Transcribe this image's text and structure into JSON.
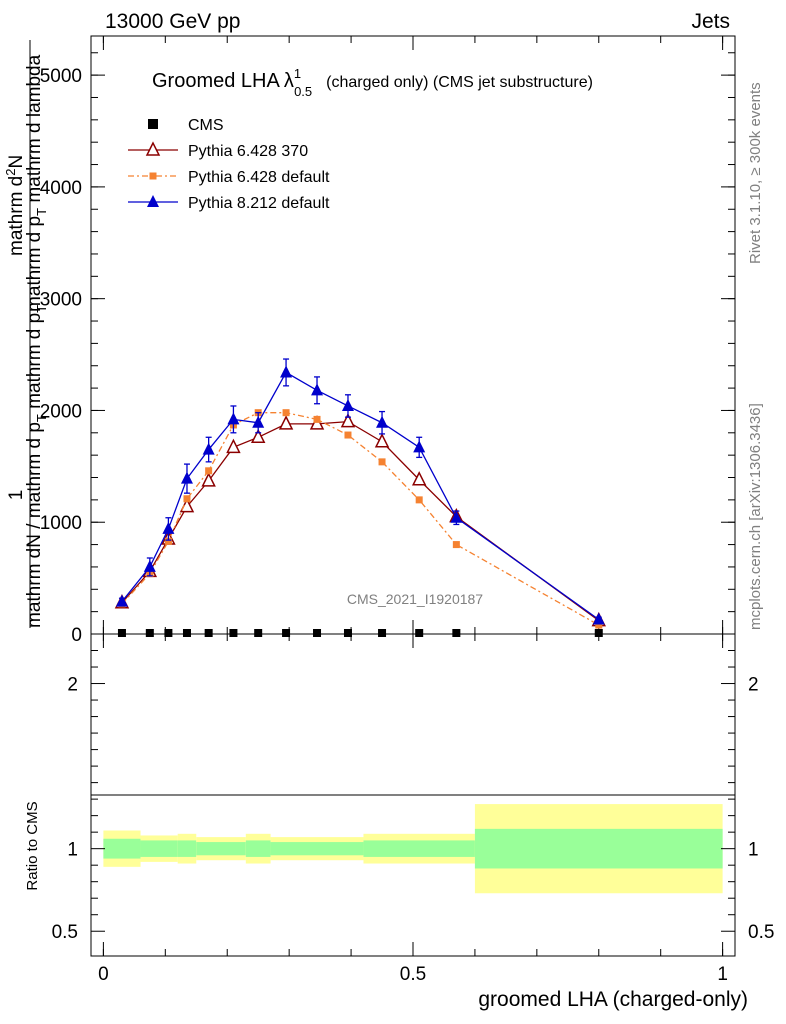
{
  "header": {
    "left": "13000 GeV pp",
    "right": "Jets"
  },
  "side": {
    "rivet": "Rivet 3.1.10, ≥ 300k events",
    "mcplots": "mcplots.cern.ch [arXiv:1306.3436]"
  },
  "watermark": "CMS_2021_I1920187",
  "chart_data": {
    "type": "line",
    "title": "Groomed LHA",
    "title_symbol": "λ",
    "title_sup": "1",
    "title_sub": "0.5",
    "title_suffix": "(charged only) (CMS jet substructure)",
    "xlabel": "groomed LHA (charged-only)",
    "ylabel": "1 / mathrm dN / mathrm d p_T mathrm d p_T mathrm d lambda / mathrm d^2N",
    "ylabel_parts": {
      "numerator": "1",
      "num_line1": "mathrm d",
      "num_sup": "2",
      "num_tail": "N",
      "num_line2": "mathrm d p",
      "num_sub": "T",
      "num_line3": " mathrm d lambda",
      "den_line1": "mathrm dN / mathrm d p",
      "den_sub": "T",
      "den_line2": "mathrm d p",
      "den_sub2": "T"
    },
    "xlim": [
      -0.02,
      1.02
    ],
    "ylim": [
      0,
      5350
    ],
    "x_ticks": [
      {
        "value": 0,
        "label": "0"
      },
      {
        "value": 0.5,
        "label": "0.5"
      },
      {
        "value": 1,
        "label": "1"
      }
    ],
    "y_ticks": [
      {
        "value": 0,
        "label": "0"
      },
      {
        "value": 1000,
        "label": "1000"
      },
      {
        "value": 2000,
        "label": "2000"
      },
      {
        "value": 3000,
        "label": "3000"
      },
      {
        "value": 4000,
        "label": "4000"
      },
      {
        "value": 5000,
        "label": "5000"
      }
    ],
    "series": [
      {
        "name": "CMS",
        "color": "#000000",
        "marker": "square",
        "line": "none",
        "x": [
          0.03,
          0.075,
          0.105,
          0.135,
          0.17,
          0.21,
          0.25,
          0.295,
          0.345,
          0.395,
          0.45,
          0.51,
          0.57,
          0.8
        ],
        "y": [
          0,
          0,
          0,
          0,
          0,
          0,
          0,
          0,
          0,
          0,
          0,
          0,
          0,
          0
        ]
      },
      {
        "name": "Pythia 6.428 370",
        "color": "#8b0000",
        "marker": "open-triangle",
        "line": "solid",
        "x": [
          0.03,
          0.075,
          0.105,
          0.135,
          0.17,
          0.21,
          0.25,
          0.295,
          0.345,
          0.395,
          0.45,
          0.51,
          0.57,
          0.8
        ],
        "y": [
          280,
          560,
          850,
          1140,
          1370,
          1670,
          1760,
          1880,
          1880,
          1900,
          1720,
          1380,
          1050,
          120
        ]
      },
      {
        "name": "Pythia 6.428 default",
        "color": "#f58231",
        "marker": "square",
        "line": "dashdot",
        "x": [
          0.03,
          0.075,
          0.105,
          0.135,
          0.17,
          0.21,
          0.25,
          0.295,
          0.345,
          0.395,
          0.45,
          0.51,
          0.57,
          0.8
        ],
        "y": [
          270,
          540,
          830,
          1210,
          1460,
          1870,
          1980,
          1980,
          1920,
          1780,
          1540,
          1200,
          800,
          80
        ]
      },
      {
        "name": "Pythia 8.212 default",
        "color": "#0000cc",
        "marker": "filled-triangle",
        "line": "solid",
        "x": [
          0.03,
          0.075,
          0.105,
          0.135,
          0.17,
          0.21,
          0.25,
          0.295,
          0.345,
          0.395,
          0.45,
          0.51,
          0.57,
          0.8
        ],
        "y": [
          290,
          600,
          940,
          1390,
          1650,
          1920,
          1890,
          2340,
          2180,
          2040,
          1890,
          1670,
          1040,
          130
        ],
        "yerr": [
          30,
          80,
          100,
          130,
          110,
          120,
          90,
          120,
          120,
          100,
          100,
          90,
          60,
          20
        ]
      }
    ],
    "ratio": {
      "ylabel": "Ratio to CMS",
      "ylim": [
        0.35,
        2.3
      ],
      "y_ticks": [
        {
          "value": 0.5,
          "label": "0.5"
        },
        {
          "value": 1,
          "label": "1"
        },
        {
          "value": 2,
          "label": "2"
        }
      ],
      "bands": [
        {
          "x0": 0.0,
          "x1": 0.06,
          "yellow": [
            0.89,
            1.11
          ],
          "green": [
            0.94,
            1.06
          ]
        },
        {
          "x0": 0.06,
          "x1": 0.12,
          "yellow": [
            0.92,
            1.08
          ],
          "green": [
            0.95,
            1.05
          ]
        },
        {
          "x0": 0.12,
          "x1": 0.15,
          "yellow": [
            0.91,
            1.09
          ],
          "green": [
            0.95,
            1.05
          ]
        },
        {
          "x0": 0.15,
          "x1": 0.23,
          "yellow": [
            0.93,
            1.07
          ],
          "green": [
            0.96,
            1.04
          ]
        },
        {
          "x0": 0.23,
          "x1": 0.27,
          "yellow": [
            0.91,
            1.09
          ],
          "green": [
            0.95,
            1.05
          ]
        },
        {
          "x0": 0.27,
          "x1": 0.42,
          "yellow": [
            0.93,
            1.07
          ],
          "green": [
            0.96,
            1.04
          ]
        },
        {
          "x0": 0.42,
          "x1": 0.6,
          "yellow": [
            0.91,
            1.09
          ],
          "green": [
            0.95,
            1.05
          ]
        },
        {
          "x0": 0.6,
          "x1": 1.0,
          "yellow": [
            0.73,
            1.27
          ],
          "green": [
            0.88,
            1.12
          ]
        }
      ]
    }
  }
}
